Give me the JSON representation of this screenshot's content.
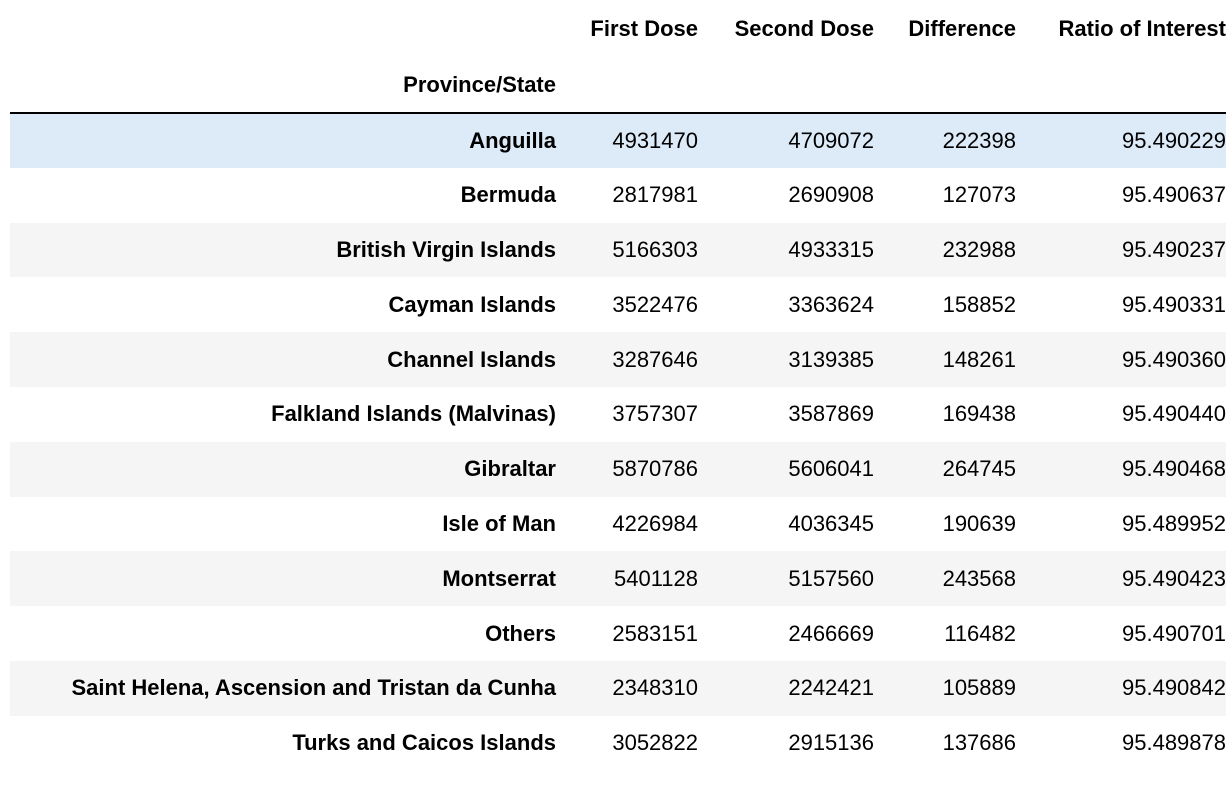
{
  "table": {
    "columns": [
      "First Dose",
      "Second Dose",
      "Difference",
      "Ratio of Interest"
    ],
    "index_name": "Province/State",
    "rows": [
      {
        "name": "Anguilla",
        "first_dose": "4931470",
        "second_dose": "4709072",
        "difference": "222398",
        "ratio": "95.490229"
      },
      {
        "name": "Bermuda",
        "first_dose": "2817981",
        "second_dose": "2690908",
        "difference": "127073",
        "ratio": "95.490637"
      },
      {
        "name": "British Virgin Islands",
        "first_dose": "5166303",
        "second_dose": "4933315",
        "difference": "232988",
        "ratio": "95.490237"
      },
      {
        "name": "Cayman Islands",
        "first_dose": "3522476",
        "second_dose": "3363624",
        "difference": "158852",
        "ratio": "95.490331"
      },
      {
        "name": "Channel Islands",
        "first_dose": "3287646",
        "second_dose": "3139385",
        "difference": "148261",
        "ratio": "95.490360"
      },
      {
        "name": "Falkland Islands (Malvinas)",
        "first_dose": "3757307",
        "second_dose": "3587869",
        "difference": "169438",
        "ratio": "95.490440"
      },
      {
        "name": "Gibraltar",
        "first_dose": "5870786",
        "second_dose": "5606041",
        "difference": "264745",
        "ratio": "95.490468"
      },
      {
        "name": "Isle of Man",
        "first_dose": "4226984",
        "second_dose": "4036345",
        "difference": "190639",
        "ratio": "95.489952"
      },
      {
        "name": "Montserrat",
        "first_dose": "5401128",
        "second_dose": "5157560",
        "difference": "243568",
        "ratio": "95.490423"
      },
      {
        "name": "Others",
        "first_dose": "2583151",
        "second_dose": "2466669",
        "difference": "116482",
        "ratio": "95.490701"
      },
      {
        "name": "Saint Helena, Ascension and Tristan da Cunha",
        "first_dose": "2348310",
        "second_dose": "2242421",
        "difference": "105889",
        "ratio": "95.490842"
      },
      {
        "name": "Turks and Caicos Islands",
        "first_dose": "3052822",
        "second_dose": "2915136",
        "difference": "137686",
        "ratio": "95.489878"
      }
    ]
  },
  "colors": {
    "row_stripe": "#f5f5f5",
    "row_hover": "#ddeaf8",
    "header_rule": "#000000"
  }
}
